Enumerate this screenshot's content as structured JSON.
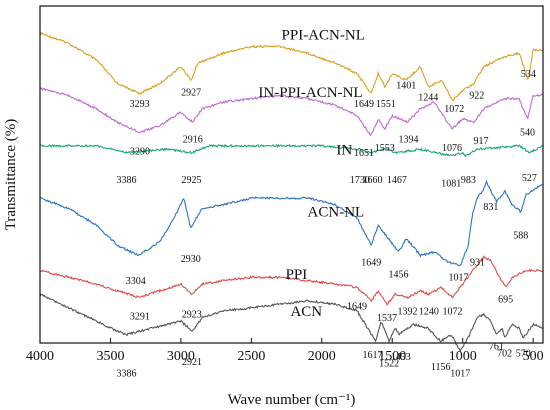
{
  "chart_data": {
    "type": "line",
    "xlabel": "Wave number (cm⁻¹)",
    "ylabel": "Transmittance (%)",
    "xlim": [
      4000,
      430
    ],
    "x_reversed": true,
    "x_ticks": [
      4000,
      3500,
      3000,
      2500,
      2000,
      1500,
      1000,
      500
    ],
    "x_tick_labels": [
      "4000",
      "3500",
      "3000",
      "2500",
      "2000",
      "1500",
      "1000",
      "500"
    ],
    "y_ticks_labeled": false,
    "grid": false,
    "legend": "none (curves labeled inline)",
    "series": [
      {
        "name": "PPI-ACN-NL",
        "color": "#d4a21e",
        "baseline": 0.08,
        "shape": [
          [
            4000,
            0.0
          ],
          [
            3800,
            0.03
          ],
          [
            3600,
            0.08
          ],
          [
            3450,
            0.15
          ],
          [
            3293,
            0.18
          ],
          [
            3150,
            0.15
          ],
          [
            3000,
            0.1
          ],
          [
            2927,
            0.14
          ],
          [
            2880,
            0.09
          ],
          [
            2700,
            0.06
          ],
          [
            2500,
            0.04
          ],
          [
            2300,
            0.04
          ],
          [
            2100,
            0.06
          ],
          [
            1900,
            0.09
          ],
          [
            1750,
            0.12
          ],
          [
            1649,
            0.18
          ],
          [
            1600,
            0.12
          ],
          [
            1551,
            0.16
          ],
          [
            1500,
            0.12
          ],
          [
            1401,
            0.14
          ],
          [
            1300,
            0.1
          ],
          [
            1244,
            0.16
          ],
          [
            1150,
            0.14
          ],
          [
            1072,
            0.2
          ],
          [
            1000,
            0.17
          ],
          [
            922,
            0.15
          ],
          [
            850,
            0.1
          ],
          [
            700,
            0.07
          ],
          [
            600,
            0.06
          ],
          [
            534,
            0.14
          ],
          [
            500,
            0.05
          ],
          [
            430,
            0.05
          ]
        ]
      },
      {
        "name": "IN-PPI-ACN-NL",
        "color": "#c06ad0",
        "baseline": 0.245,
        "shape": [
          [
            4000,
            0.0
          ],
          [
            3800,
            0.02
          ],
          [
            3600,
            0.06
          ],
          [
            3450,
            0.1
          ],
          [
            3290,
            0.13
          ],
          [
            3150,
            0.11
          ],
          [
            3000,
            0.07
          ],
          [
            2916,
            0.1
          ],
          [
            2850,
            0.06
          ],
          [
            2700,
            0.04
          ],
          [
            2500,
            0.03
          ],
          [
            2300,
            0.02
          ],
          [
            2100,
            0.03
          ],
          [
            1900,
            0.05
          ],
          [
            1750,
            0.08
          ],
          [
            1651,
            0.14
          ],
          [
            1600,
            0.09
          ],
          [
            1553,
            0.12
          ],
          [
            1500,
            0.08
          ],
          [
            1394,
            0.1
          ],
          [
            1300,
            0.06
          ],
          [
            1200,
            0.04
          ],
          [
            1076,
            0.12
          ],
          [
            1000,
            0.09
          ],
          [
            917,
            0.1
          ],
          [
            850,
            0.06
          ],
          [
            700,
            0.03
          ],
          [
            600,
            0.03
          ],
          [
            540,
            0.09
          ],
          [
            500,
            0.02
          ],
          [
            430,
            0.02
          ]
        ]
      },
      {
        "name": "IN",
        "color": "#1aa86b",
        "baseline": 0.415,
        "shape": [
          [
            4000,
            0.0
          ],
          [
            3600,
            0.0
          ],
          [
            3386,
            0.02
          ],
          [
            3100,
            0.01
          ],
          [
            2925,
            0.02
          ],
          [
            2800,
            0.0
          ],
          [
            2000,
            0.0
          ],
          [
            1730,
            0.01
          ],
          [
            1660,
            0.02
          ],
          [
            1550,
            0.01
          ],
          [
            1467,
            0.02
          ],
          [
            1300,
            0.01
          ],
          [
            1081,
            0.03
          ],
          [
            1000,
            0.02
          ],
          [
            983,
            0.03
          ],
          [
            900,
            0.01
          ],
          [
            600,
            0.0
          ],
          [
            527,
            0.02
          ],
          [
            430,
            0.0
          ]
        ]
      },
      {
        "name": "ACN-NL",
        "color": "#2a73c2",
        "baseline": 0.57,
        "shape": [
          [
            4000,
            0.0
          ],
          [
            3800,
            0.03
          ],
          [
            3600,
            0.08
          ],
          [
            3450,
            0.14
          ],
          [
            3304,
            0.17
          ],
          [
            3150,
            0.13
          ],
          [
            3050,
            0.06
          ],
          [
            2980,
            0.0
          ],
          [
            2930,
            0.09
          ],
          [
            2850,
            0.03
          ],
          [
            2700,
            0.02
          ],
          [
            2500,
            0.0
          ],
          [
            2300,
            0.0
          ],
          [
            2100,
            0.0
          ],
          [
            1900,
            0.02
          ],
          [
            1750,
            0.06
          ],
          [
            1649,
            0.14
          ],
          [
            1600,
            0.08
          ],
          [
            1456,
            0.16
          ],
          [
            1400,
            0.12
          ],
          [
            1300,
            0.17
          ],
          [
            1200,
            0.16
          ],
          [
            1100,
            0.19
          ],
          [
            1017,
            0.2
          ],
          [
            960,
            0.14
          ],
          [
            931,
            0.05
          ],
          [
            900,
            0.0
          ],
          [
            860,
            -0.02
          ],
          [
            831,
            -0.05
          ],
          [
            800,
            -0.02
          ],
          [
            760,
            0.01
          ],
          [
            700,
            -0.02
          ],
          [
            650,
            0.02
          ],
          [
            588,
            0.04
          ],
          [
            550,
            -0.01
          ],
          [
            480,
            -0.03
          ],
          [
            430,
            -0.04
          ]
        ]
      },
      {
        "name": "PPI",
        "color": "#e04a4a",
        "baseline": 0.785,
        "shape": [
          [
            4000,
            0.0
          ],
          [
            3800,
            0.02
          ],
          [
            3600,
            0.04
          ],
          [
            3450,
            0.06
          ],
          [
            3291,
            0.08
          ],
          [
            3150,
            0.06
          ],
          [
            3000,
            0.04
          ],
          [
            2923,
            0.07
          ],
          [
            2850,
            0.04
          ],
          [
            2700,
            0.03
          ],
          [
            2500,
            0.02
          ],
          [
            2300,
            0.02
          ],
          [
            2100,
            0.03
          ],
          [
            1900,
            0.04
          ],
          [
            1750,
            0.05
          ],
          [
            1649,
            0.09
          ],
          [
            1600,
            0.06
          ],
          [
            1537,
            0.1
          ],
          [
            1480,
            0.07
          ],
          [
            1392,
            0.08
          ],
          [
            1300,
            0.06
          ],
          [
            1240,
            0.07
          ],
          [
            1150,
            0.05
          ],
          [
            1072,
            0.08
          ],
          [
            1000,
            0.04
          ],
          [
            930,
            0.0
          ],
          [
            850,
            -0.04
          ],
          [
            800,
            -0.03
          ],
          [
            750,
            0.01
          ],
          [
            695,
            0.05
          ],
          [
            650,
            0.02
          ],
          [
            550,
            0.0
          ],
          [
            430,
            0.0
          ]
        ]
      },
      {
        "name": "ACN",
        "color": "#555555",
        "baseline": 0.855,
        "shape": [
          [
            4000,
            0.0
          ],
          [
            3800,
            0.04
          ],
          [
            3600,
            0.08
          ],
          [
            3450,
            0.11
          ],
          [
            3386,
            0.12
          ],
          [
            3200,
            0.1
          ],
          [
            3000,
            0.08
          ],
          [
            2921,
            0.11
          ],
          [
            2850,
            0.07
          ],
          [
            2700,
            0.05
          ],
          [
            2500,
            0.04
          ],
          [
            2300,
            0.03
          ],
          [
            2100,
            0.02
          ],
          [
            1900,
            0.03
          ],
          [
            1750,
            0.05
          ],
          [
            1617,
            0.14
          ],
          [
            1580,
            0.08
          ],
          [
            1522,
            0.14
          ],
          [
            1480,
            0.1
          ],
          [
            1453,
            0.12
          ],
          [
            1350,
            0.09
          ],
          [
            1250,
            0.1
          ],
          [
            1156,
            0.14
          ],
          [
            1080,
            0.12
          ],
          [
            1017,
            0.17
          ],
          [
            950,
            0.12
          ],
          [
            900,
            0.07
          ],
          [
            850,
            0.06
          ],
          [
            800,
            0.08
          ],
          [
            761,
            0.12
          ],
          [
            720,
            0.1
          ],
          [
            702,
            0.13
          ],
          [
            650,
            0.09
          ],
          [
            600,
            0.1
          ],
          [
            570,
            0.13
          ],
          [
            500,
            0.09
          ],
          [
            430,
            0.1
          ]
        ]
      }
    ],
    "series_labels": [
      {
        "text": "PPI-ACN-NL",
        "x": 1990,
        "y": 0.1
      },
      {
        "text": "IN-PPI-ACN-NL",
        "x": 2080,
        "y": 0.27
      },
      {
        "text": "IN",
        "x": 1840,
        "y": 0.44
      },
      {
        "text": "ACN-NL",
        "x": 1900,
        "y": 0.625
      },
      {
        "text": "PPI",
        "x": 2180,
        "y": 0.81
      },
      {
        "text": "ACN",
        "x": 2110,
        "y": 0.92
      }
    ],
    "peak_labels": [
      {
        "text": "3293",
        "x": 3293,
        "y": 0.3
      },
      {
        "text": "2927",
        "x": 2927,
        "y": 0.265
      },
      {
        "text": "1649",
        "x": 1700,
        "y": 0.3
      },
      {
        "text": "1551",
        "x": 1545,
        "y": 0.3
      },
      {
        "text": "1401",
        "x": 1401,
        "y": 0.245
      },
      {
        "text": "1244",
        "x": 1244,
        "y": 0.28
      },
      {
        "text": "1072",
        "x": 1060,
        "y": 0.315
      },
      {
        "text": "922",
        "x": 900,
        "y": 0.275
      },
      {
        "text": "534",
        "x": 534,
        "y": 0.21
      },
      {
        "text": "3290",
        "x": 3290,
        "y": 0.44
      },
      {
        "text": "2916",
        "x": 2916,
        "y": 0.405
      },
      {
        "text": "1651",
        "x": 1700,
        "y": 0.445
      },
      {
        "text": "1553",
        "x": 1553,
        "y": 0.43
      },
      {
        "text": "1394",
        "x": 1385,
        "y": 0.405
      },
      {
        "text": "1076",
        "x": 1076,
        "y": 0.43
      },
      {
        "text": "917",
        "x": 870,
        "y": 0.41
      },
      {
        "text": "540",
        "x": 540,
        "y": 0.385
      },
      {
        "text": "3386",
        "x": 3386,
        "y": 0.525
      },
      {
        "text": "2925",
        "x": 2925,
        "y": 0.525
      },
      {
        "text": "1730",
        "x": 1730,
        "y": 0.525
      },
      {
        "text": "1660",
        "x": 1640,
        "y": 0.525
      },
      {
        "text": "1467",
        "x": 1467,
        "y": 0.525
      },
      {
        "text": "1081",
        "x": 1081,
        "y": 0.535
      },
      {
        "text": "983",
        "x": 960,
        "y": 0.525
      },
      {
        "text": "527",
        "x": 527,
        "y": 0.52
      },
      {
        "text": "3304",
        "x": 3320,
        "y": 0.825
      },
      {
        "text": "2930",
        "x": 2930,
        "y": 0.76
      },
      {
        "text": "1649",
        "x": 1649,
        "y": 0.77
      },
      {
        "text": "1456",
        "x": 1456,
        "y": 0.805
      },
      {
        "text": "1017",
        "x": 1030,
        "y": 0.815
      },
      {
        "text": "931",
        "x": 895,
        "y": 0.77
      },
      {
        "text": "831",
        "x": 800,
        "y": 0.605
      },
      {
        "text": "588",
        "x": 588,
        "y": 0.69
      },
      {
        "text": "3291",
        "x": 3291,
        "y": 0.93
      },
      {
        "text": "2923",
        "x": 2923,
        "y": 0.925
      },
      {
        "text": "1649",
        "x": 1750,
        "y": 0.9
      },
      {
        "text": "1537",
        "x": 1537,
        "y": 0.935
      },
      {
        "text": "1392",
        "x": 1392,
        "y": 0.915
      },
      {
        "text": "1240",
        "x": 1240,
        "y": 0.915
      },
      {
        "text": "1072",
        "x": 1072,
        "y": 0.915
      },
      {
        "text": "695",
        "x": 695,
        "y": 0.88
      },
      {
        "text": "3386",
        "x": 3386,
        "y": 1.1
      },
      {
        "text": "2921",
        "x": 2921,
        "y": 1.065
      },
      {
        "text": "1617",
        "x": 1640,
        "y": 1.045
      },
      {
        "text": "1522",
        "x": 1522,
        "y": 1.07
      },
      {
        "text": "1453",
        "x": 1440,
        "y": 1.05
      },
      {
        "text": "1156",
        "x": 1156,
        "y": 1.08
      },
      {
        "text": "1017",
        "x": 1017,
        "y": 1.1
      },
      {
        "text": "761",
        "x": 761,
        "y": 1.02
      },
      {
        "text": "702",
        "x": 702,
        "y": 1.04
      },
      {
        "text": "570",
        "x": 570,
        "y": 1.04
      }
    ]
  }
}
